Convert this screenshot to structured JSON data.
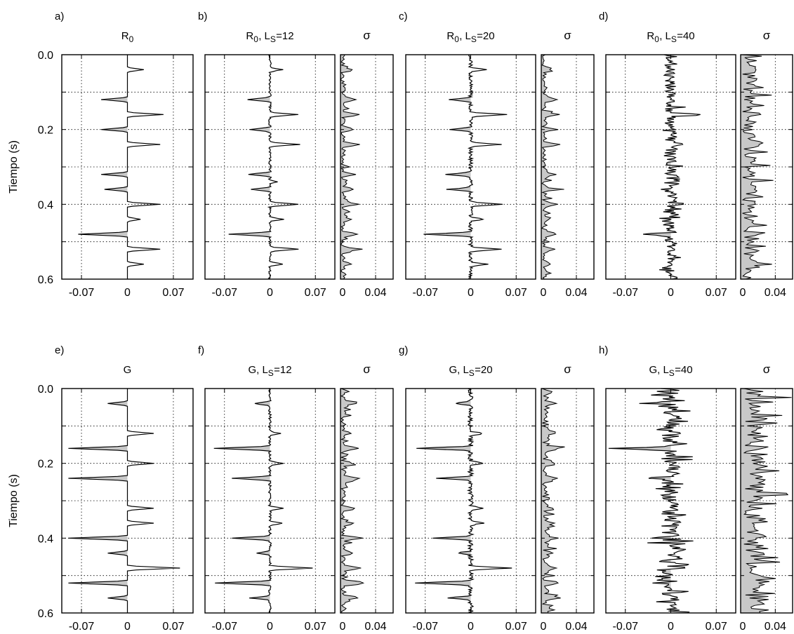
{
  "figure": {
    "ylabel": "Tiempo (s)",
    "y_ticks": [
      "0.0",
      "0.2",
      "0.4",
      "0.6"
    ],
    "trace_x_ticks": [
      "-0.07",
      "0",
      "0.07"
    ],
    "sigma_x_ticks": [
      "0",
      "0.04"
    ],
    "sigma_title": "σ"
  },
  "chart_data": [
    {
      "id": "a",
      "letter": "a)",
      "title": "R0",
      "title_base": "R",
      "title_sub": "0",
      "title_rest": "",
      "title_rest_sub": "",
      "title_tail": "",
      "type": "line",
      "has_sigma": false,
      "noise": 0,
      "ylim": [
        0.0,
        0.6
      ],
      "xlim": [
        -0.1,
        0.1
      ],
      "spikes": [
        [
          0.04,
          0.025
        ],
        [
          0.12,
          -0.04
        ],
        [
          0.16,
          0.055
        ],
        [
          0.2,
          -0.04
        ],
        [
          0.24,
          0.05
        ],
        [
          0.32,
          -0.04
        ],
        [
          0.36,
          -0.035
        ],
        [
          0.4,
          0.05
        ],
        [
          0.44,
          0.02
        ],
        [
          0.48,
          -0.075
        ],
        [
          0.52,
          0.05
        ],
        [
          0.56,
          0.025
        ]
      ]
    },
    {
      "id": "b",
      "letter": "b)",
      "title": "R0, LS=12",
      "title_base": "R",
      "title_sub": "0",
      "title_rest": ", L",
      "title_rest_sub": "S",
      "title_tail": "=12",
      "type": "line",
      "has_sigma": true,
      "noise": 0.002,
      "sigma_level": 0.004,
      "sigma_spike": 0.018,
      "ylim": [
        0.0,
        0.6
      ],
      "xlim": [
        -0.1,
        0.1
      ],
      "sigma_xlim": [
        0,
        0.06
      ],
      "spikes": [
        [
          0.04,
          0.02
        ],
        [
          0.12,
          -0.035
        ],
        [
          0.16,
          0.045
        ],
        [
          0.2,
          -0.03
        ],
        [
          0.24,
          0.045
        ],
        [
          0.32,
          -0.035
        ],
        [
          0.34,
          0.01
        ],
        [
          0.36,
          -0.03
        ],
        [
          0.4,
          0.045
        ],
        [
          0.44,
          0.02
        ],
        [
          0.48,
          -0.065
        ],
        [
          0.52,
          0.045
        ],
        [
          0.56,
          0.02
        ]
      ]
    },
    {
      "id": "c",
      "letter": "c)",
      "title": "R0, LS=20",
      "title_base": "R",
      "title_sub": "0",
      "title_rest": ", L",
      "title_rest_sub": "S",
      "title_tail": "=20",
      "type": "line",
      "has_sigma": true,
      "noise": 0.003,
      "sigma_level": 0.005,
      "sigma_spike": 0.014,
      "ylim": [
        0.0,
        0.6
      ],
      "xlim": [
        -0.1,
        0.1
      ],
      "sigma_xlim": [
        0,
        0.06
      ],
      "spikes": [
        [
          0.04,
          0.025
        ],
        [
          0.12,
          -0.035
        ],
        [
          0.16,
          0.055
        ],
        [
          0.2,
          -0.035
        ],
        [
          0.24,
          0.05
        ],
        [
          0.32,
          -0.04
        ],
        [
          0.36,
          -0.035
        ],
        [
          0.4,
          0.05
        ],
        [
          0.44,
          0.02
        ],
        [
          0.48,
          -0.07
        ],
        [
          0.52,
          0.05
        ],
        [
          0.56,
          0.025
        ]
      ]
    },
    {
      "id": "d",
      "letter": "d)",
      "title": "R0, LS=40",
      "title_base": "R",
      "title_sub": "0",
      "title_rest": ", L",
      "title_rest_sub": "S",
      "title_tail": "=40",
      "type": "line",
      "has_sigma": true,
      "noise": 0.01,
      "sigma_level": 0.014,
      "sigma_spike": 0.012,
      "ylim": [
        0.0,
        0.6
      ],
      "xlim": [
        -0.1,
        0.1
      ],
      "sigma_xlim": [
        0,
        0.06
      ],
      "spikes": [
        [
          0.16,
          0.05
        ],
        [
          0.24,
          0.02
        ],
        [
          0.4,
          0.025
        ],
        [
          0.48,
          -0.04
        ],
        [
          0.52,
          0.015
        ]
      ]
    },
    {
      "id": "e",
      "letter": "e)",
      "title": "G",
      "title_base": "G",
      "title_sub": "",
      "title_rest": "",
      "title_rest_sub": "",
      "title_tail": "",
      "type": "line",
      "has_sigma": false,
      "noise": 0,
      "ylim": [
        0.0,
        0.6
      ],
      "xlim": [
        -0.1,
        0.1
      ],
      "spikes": [
        [
          0.04,
          -0.03
        ],
        [
          0.12,
          0.04
        ],
        [
          0.16,
          -0.09
        ],
        [
          0.2,
          0.04
        ],
        [
          0.24,
          -0.09
        ],
        [
          0.32,
          0.04
        ],
        [
          0.36,
          0.04
        ],
        [
          0.4,
          -0.09
        ],
        [
          0.44,
          -0.03
        ],
        [
          0.48,
          0.08
        ],
        [
          0.52,
          -0.09
        ],
        [
          0.56,
          -0.03
        ]
      ]
    },
    {
      "id": "f",
      "letter": "f)",
      "title": "G, LS=12",
      "title_base": "G",
      "title_sub": "",
      "title_rest": ", L",
      "title_rest_sub": "S",
      "title_tail": "=12",
      "type": "line",
      "has_sigma": true,
      "noise": 0.002,
      "sigma_level": 0.005,
      "sigma_spike": 0.02,
      "ylim": [
        0.0,
        0.6
      ],
      "xlim": [
        -0.1,
        0.1
      ],
      "sigma_xlim": [
        0,
        0.06
      ],
      "spikes": [
        [
          0.04,
          -0.025
        ],
        [
          0.12,
          0.015
        ],
        [
          0.16,
          -0.085
        ],
        [
          0.2,
          0.02
        ],
        [
          0.24,
          -0.06
        ],
        [
          0.32,
          0.02
        ],
        [
          0.36,
          0.02
        ],
        [
          0.4,
          -0.06
        ],
        [
          0.44,
          -0.02
        ],
        [
          0.48,
          0.065
        ],
        [
          0.52,
          -0.085
        ],
        [
          0.56,
          -0.03
        ]
      ]
    },
    {
      "id": "g",
      "letter": "g)",
      "title": "G, LS=20",
      "title_base": "G",
      "title_sub": "",
      "title_rest": ", L",
      "title_rest_sub": "S",
      "title_tail": "=20",
      "type": "line",
      "has_sigma": true,
      "noise": 0.004,
      "sigma_level": 0.007,
      "sigma_spike": 0.016,
      "ylim": [
        0.0,
        0.6
      ],
      "xlim": [
        -0.1,
        0.1
      ],
      "sigma_xlim": [
        0,
        0.06
      ],
      "spikes": [
        [
          0.04,
          -0.025
        ],
        [
          0.12,
          0.02
        ],
        [
          0.16,
          -0.085
        ],
        [
          0.2,
          0.02
        ],
        [
          0.24,
          -0.05
        ],
        [
          0.32,
          0.02
        ],
        [
          0.36,
          0.02
        ],
        [
          0.4,
          -0.055
        ],
        [
          0.44,
          -0.02
        ],
        [
          0.48,
          0.06
        ],
        [
          0.52,
          -0.085
        ],
        [
          0.56,
          -0.035
        ]
      ]
    },
    {
      "id": "h",
      "letter": "h)",
      "title": "G, LS=40",
      "title_base": "G",
      "title_sub": "",
      "title_rest": ", L",
      "title_rest_sub": "S",
      "title_tail": "=40",
      "type": "line",
      "has_sigma": true,
      "noise": 0.015,
      "sigma_level": 0.024,
      "sigma_spike": 0.012,
      "ylim": [
        0.0,
        0.6
      ],
      "xlim": [
        -0.1,
        0.1
      ],
      "sigma_xlim": [
        0,
        0.06
      ],
      "spikes": [
        [
          0.04,
          -0.02
        ],
        [
          0.16,
          -0.085
        ],
        [
          0.2,
          0.01
        ],
        [
          0.24,
          -0.03
        ],
        [
          0.4,
          -0.03
        ],
        [
          0.48,
          0.02
        ],
        [
          0.52,
          -0.03
        ]
      ]
    }
  ]
}
